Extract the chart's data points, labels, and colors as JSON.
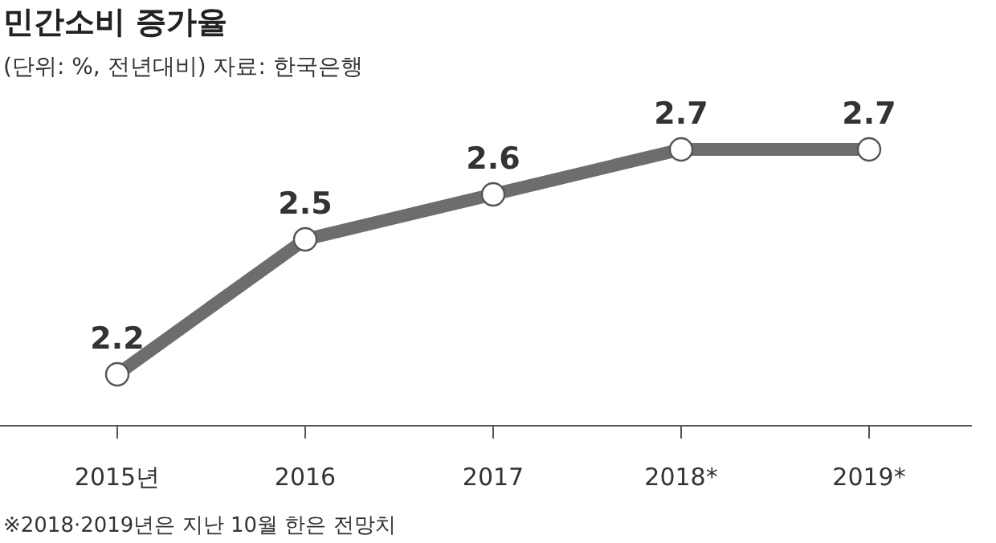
{
  "chart_data": {
    "type": "line",
    "title": "민간소비 증가율",
    "subtitle": "(단위: %, 전년대비) 자료: 한국은행",
    "categories": [
      "2015년",
      "2016",
      "2017",
      "2018*",
      "2019*"
    ],
    "values": [
      2.2,
      2.5,
      2.6,
      2.7,
      2.7
    ],
    "color": "#6d6d6d",
    "marker": "circle",
    "data_labels": true,
    "annotations": [
      "※2018·2019년은 지난 10월 한은 전망치"
    ]
  }
}
